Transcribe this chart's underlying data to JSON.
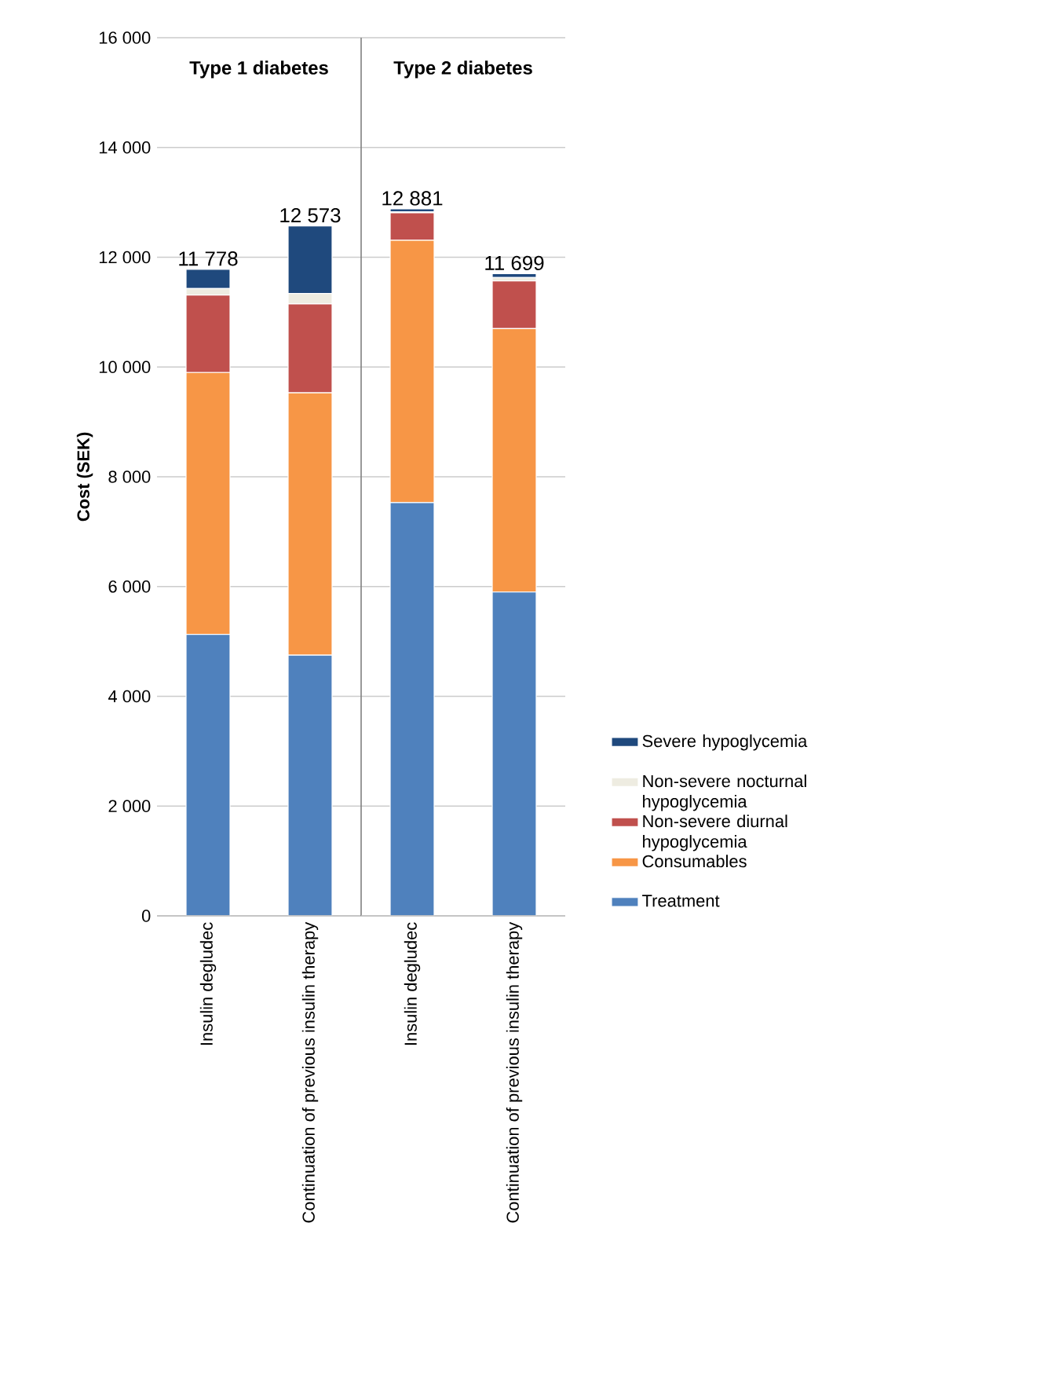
{
  "chart_data": [
    {
      "type": "bar",
      "stacked": true,
      "title": "Type 1 diabetes",
      "ylabel": "Cost (SEK)",
      "categories": [
        "Insulin degludec",
        "Continuation of previous insulin therapy"
      ],
      "series": [
        {
          "color": "#4f81bd",
          "values": [
            5130,
            4750
          ]
        },
        {
          "color": "#f79646",
          "values": [
            4770,
            4780
          ]
        },
        {
          "color": "#c0504d",
          "values": [
            1410,
            1620
          ]
        },
        {
          "color": "#eeece1",
          "values": [
            120,
            190
          ]
        },
        {
          "color": "#1f497d",
          "values": [
            350,
            1230
          ]
        }
      ],
      "totals": [
        "11 778",
        "12 573"
      ],
      "ylim": [
        0,
        16000
      ],
      "yticks": [
        0,
        {
          "value": 2000,
          "label": "2 000"
        },
        {
          "value": 4000,
          "label": "4 000"
        },
        {
          "value": 6000,
          "label": "6 000"
        },
        {
          "value": 8000,
          "label": "8 000"
        },
        {
          "value": 10000,
          "label": "10 000"
        },
        {
          "value": 12000,
          "label": "12 000"
        },
        {
          "value": 14000,
          "label": "14 000"
        },
        {
          "value": 16000,
          "label": "16 000"
        }
      ],
      "grid": "y"
    },
    {
      "type": "bar",
      "stacked": true,
      "title": "Type 2 diabetes",
      "categories": [
        "Insulin degludec",
        "Continuation of previous insulin therapy"
      ],
      "series": [
        {
          "name": "Treatment",
          "color": "#4f81bd",
          "values": [
            7530,
            5900
          ]
        },
        {
          "name": "Consumables",
          "color": "#f79646",
          "values": [
            4780,
            4800
          ]
        },
        {
          "name": "Non-severe diurnal hypoglycemia",
          "color": "#c0504d",
          "values": [
            500,
            870
          ]
        },
        {
          "name": "Non-severe nocturnal hypoglycemia",
          "color": "#eeece1",
          "values": [
            20,
            60
          ]
        },
        {
          "name": "Severe hypoglycemia",
          "color": "#1f497d",
          "values": [
            50,
            70
          ]
        }
      ],
      "totals": [
        "12 881",
        "11 699"
      ],
      "ylim": [
        0,
        16000
      ],
      "yticks": [
        0,
        2000,
        4000,
        6000,
        8000,
        10000,
        12000,
        14000,
        16000
      ],
      "tick_labels": "x",
      "grid": "y",
      "legend": "right"
    }
  ]
}
